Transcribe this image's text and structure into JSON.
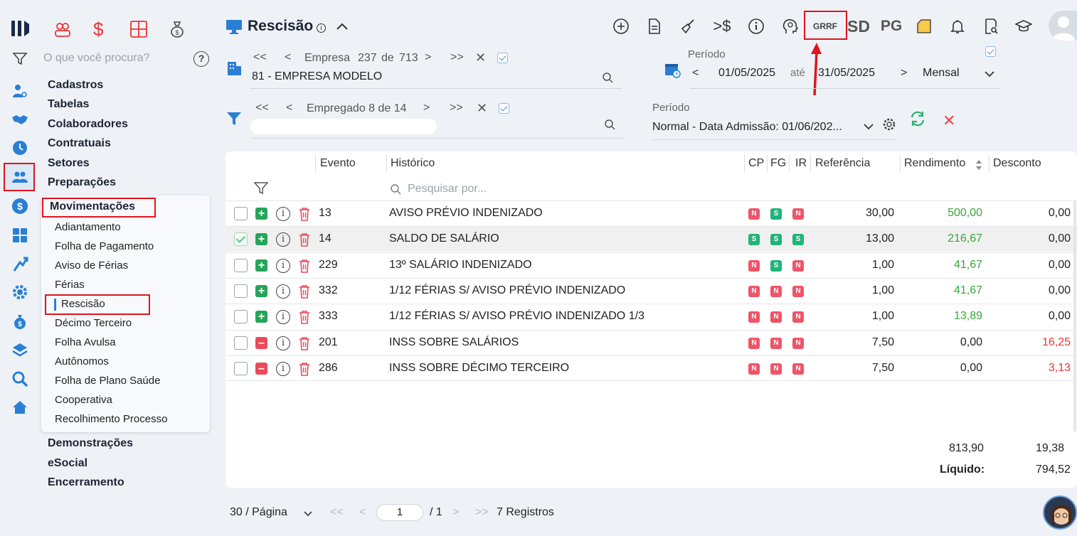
{
  "title": "Rescisão",
  "search_placeholder": "O que você procura?",
  "menu": {
    "main_top": [
      "Cadastros",
      "Tabelas",
      "Colaboradores",
      "Contratuais",
      "Setores",
      "Preparações"
    ],
    "section": "Movimentações",
    "sub": [
      "Adiantamento",
      "Folha de Pagamento",
      "Aviso de Férias",
      "Férias",
      "Rescisão",
      "Décimo Terceiro",
      "Folha Avulsa",
      "Autônomos",
      "Folha de Plano Saúde",
      "Cooperativa",
      "Recolhimento Processo"
    ],
    "main_bottom": [
      "Demonstrações",
      "eSocial",
      "Encerramento"
    ]
  },
  "company_nav": {
    "prefix": "Empresa",
    "current": "237",
    "sep": "de",
    "total": "713",
    "value": "81 - EMPRESA MODELO"
  },
  "employee_nav": {
    "text": "Empregado 8 de 14"
  },
  "period": {
    "label": "Período",
    "start": "01/05/2025",
    "until": "até",
    "end": "31/05/2025",
    "frequency": "Mensal"
  },
  "period2": {
    "label": "Período",
    "value": "Normal - Data Admissão: 01/06/202..."
  },
  "top_icons": {
    "grrf": "GRRF",
    "sd": "SD",
    "pg": "PG"
  },
  "table": {
    "headers": {
      "evento": "Evento",
      "historico": "Histórico",
      "cp": "CP",
      "fg": "FG",
      "ir": "IR",
      "referencia": "Referência",
      "rendimento": "Rendimento",
      "desconto": "Desconto"
    },
    "filter_placeholder": "Pesquisar por...",
    "rows": [
      {
        "type": "plus",
        "checked": false,
        "evento": "13",
        "historico": "AVISO PRÉVIO INDENIZADO",
        "cp": "N",
        "fg": "S",
        "ir": "N",
        "referencia": "30,00",
        "rendimento": "500,00",
        "desconto": "0,00"
      },
      {
        "type": "plus",
        "checked": true,
        "evento": "14",
        "historico": "SALDO DE SALÁRIO",
        "cp": "S",
        "fg": "S",
        "ir": "S",
        "referencia": "13,00",
        "rendimento": "216,67",
        "desconto": "0,00"
      },
      {
        "type": "plus",
        "checked": false,
        "evento": "229",
        "historico": "13º SALÁRIO INDENIZADO",
        "cp": "N",
        "fg": "S",
        "ir": "N",
        "referencia": "1,00",
        "rendimento": "41,67",
        "desconto": "0,00"
      },
      {
        "type": "plus",
        "checked": false,
        "evento": "332",
        "historico": "1/12 FÉRIAS S/ AVISO PRÉVIO INDENIZADO",
        "cp": "N",
        "fg": "N",
        "ir": "N",
        "referencia": "1,00",
        "rendimento": "41,67",
        "desconto": "0,00"
      },
      {
        "type": "plus",
        "checked": false,
        "evento": "333",
        "historico": "1/12 FÉRIAS S/ AVISO PRÉVIO INDENIZADO 1/3",
        "cp": "N",
        "fg": "N",
        "ir": "N",
        "referencia": "1,00",
        "rendimento": "13,89",
        "desconto": "0,00"
      },
      {
        "type": "minus",
        "checked": false,
        "evento": "201",
        "historico": "INSS SOBRE SALÁRIOS",
        "cp": "N",
        "fg": "N",
        "ir": "N",
        "referencia": "7,50",
        "rendimento": "0,00",
        "desconto": "16,25"
      },
      {
        "type": "minus",
        "checked": false,
        "evento": "286",
        "historico": "INSS SOBRE DÉCIMO TERCEIRO",
        "cp": "N",
        "fg": "N",
        "ir": "N",
        "referencia": "7,50",
        "rendimento": "0,00",
        "desconto": "3,13"
      }
    ],
    "totals": {
      "rendimento": "813,90",
      "desconto": "19,38",
      "liquido_label": "Líquido:",
      "liquido": "794,52"
    }
  },
  "pagination": {
    "page_size": "30 / Página",
    "page": "1",
    "total_pages": "/ 1",
    "records": "7 Registros"
  }
}
